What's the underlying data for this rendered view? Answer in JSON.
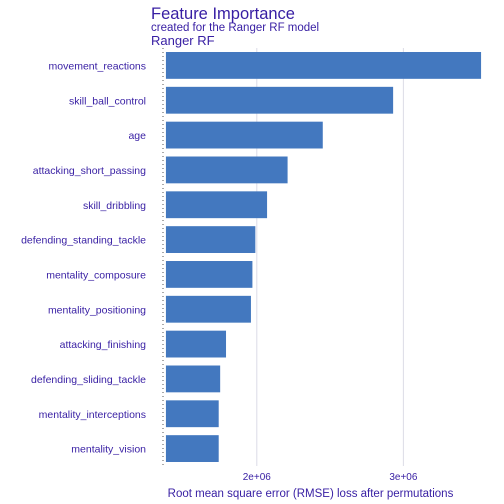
{
  "header": {
    "title": "Feature Importance",
    "subtitle": "created for the Ranger RF model",
    "model_label": "Ranger RF"
  },
  "colors": {
    "bar": "#4378bf",
    "text": "#371ea3",
    "grid": "#dcdce6",
    "background": "#ffffff"
  },
  "chart_data": {
    "type": "bar",
    "orientation": "horizontal",
    "title": "Feature Importance",
    "subtitle": "created for the Ranger RF model",
    "panel_label": "Ranger RF",
    "xlabel": "Root mean square error (RMSE) loss after permutations",
    "ylabel": "",
    "baseline": 1380000,
    "xlim": [
      1360000,
      3550000
    ],
    "xticks": [
      {
        "value": 2000000,
        "label": "2e+06"
      },
      {
        "value": 3000000,
        "label": "3e+06"
      }
    ],
    "grid": true,
    "legend": "none",
    "categories": [
      "movement_reactions",
      "skill_ball_control",
      "age",
      "attacking_short_passing",
      "skill_dribbling",
      "defending_standing_tackle",
      "mentality_composure",
      "mentality_positioning",
      "attacking_finishing",
      "defending_sliding_tackle",
      "mentality_interceptions",
      "mentality_vision"
    ],
    "values": [
      3530000,
      2930000,
      2450000,
      2210000,
      2070000,
      1990000,
      1970000,
      1960000,
      1790000,
      1750000,
      1740000,
      1740000
    ]
  }
}
